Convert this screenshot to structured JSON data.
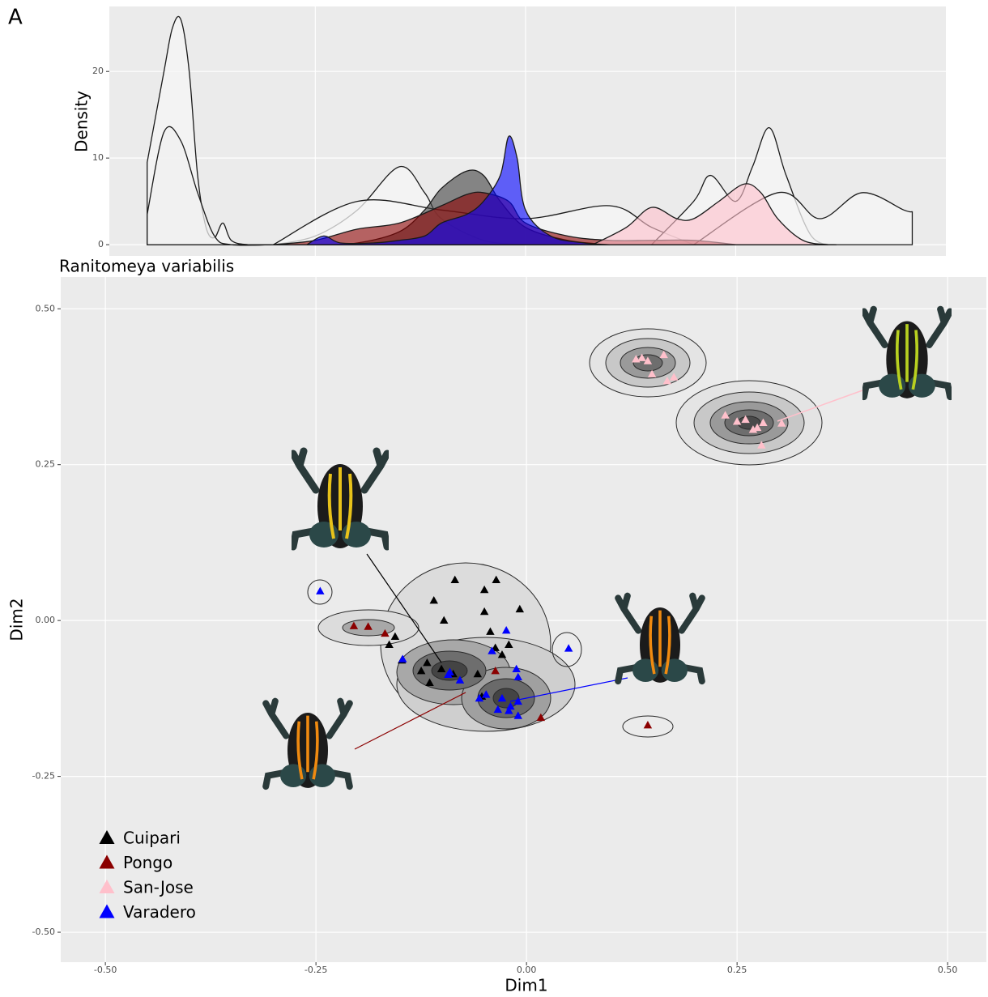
{
  "panel_label": "A",
  "chart_data": [
    {
      "type": "density",
      "ylabel": "Density",
      "xlim": [
        -0.495,
        0.5
      ],
      "ylim": [
        -1.3,
        27.5
      ],
      "xticks": [
        -0.25,
        0,
        0.25
      ],
      "yticks": [
        0,
        10,
        20
      ],
      "grid": true,
      "series": [
        {
          "color": "#f5f5f5",
          "x": [
            -0.45,
            -0.43,
            -0.42,
            -0.41,
            -0.4,
            -0.39,
            -0.38,
            -0.37,
            -0.36,
            -0.35,
            -0.33,
            -0.3
          ],
          "values": [
            9.5,
            20,
            25,
            26,
            20,
            8,
            2,
            0.8,
            2.5,
            0.5,
            0,
            0
          ]
        },
        {
          "color": "#f0f0f0",
          "x": [
            -0.45,
            -0.43,
            -0.41,
            -0.39,
            -0.37,
            -0.35,
            -0.3
          ],
          "values": [
            3.5,
            13,
            12,
            6,
            1,
            0,
            0
          ]
        },
        {
          "color": "#f5f5f5",
          "x": [
            -0.3,
            -0.25,
            -0.2,
            -0.15,
            -0.12,
            -0.1,
            -0.05,
            0
          ],
          "values": [
            0,
            1,
            4,
            9,
            6,
            3,
            0.5,
            0
          ]
        },
        {
          "color": "#f5f5f5",
          "x": [
            -0.3,
            -0.2,
            -0.1,
            0,
            0.1,
            0.15,
            0.2
          ],
          "values": [
            0,
            5,
            4,
            3,
            4.5,
            2,
            0
          ]
        },
        {
          "color": "#f5f5f5",
          "x": [
            0.15,
            0.2,
            0.22,
            0.25,
            0.27,
            0.29,
            0.31,
            0.34,
            0.37
          ],
          "values": [
            0,
            5,
            8,
            5,
            9,
            13.5,
            8,
            1,
            0
          ]
        },
        {
          "color": "#f5f5f5",
          "x": [
            0.2,
            0.3,
            0.35,
            0.4,
            0.45,
            0.46
          ],
          "values": [
            0,
            6,
            3,
            6,
            4,
            3.8
          ]
        },
        {
          "name": "Cuipari",
          "color": "#404040",
          "x": [
            -0.25,
            -0.2,
            -0.15,
            -0.12,
            -0.1,
            -0.07,
            -0.05,
            -0.03,
            0,
            0.05,
            0.1
          ],
          "values": [
            0,
            0.2,
            1.5,
            4,
            6.5,
            8.5,
            8,
            5,
            2,
            0.5,
            0
          ]
        },
        {
          "name": "Pongo",
          "color": "#8b0000",
          "x": [
            -0.3,
            -0.25,
            -0.2,
            -0.15,
            -0.1,
            -0.07,
            -0.05,
            -0.02,
            0,
            0.05,
            0.1,
            0.15,
            0.2,
            0.25
          ],
          "values": [
            0,
            0.5,
            1.8,
            2.5,
            4.5,
            5.8,
            6,
            5,
            2.5,
            1,
            0.5,
            0.5,
            0.5,
            0
          ]
        },
        {
          "name": "San-Jose",
          "color": "#ffc0cb",
          "x": [
            0.08,
            0.12,
            0.15,
            0.18,
            0.2,
            0.23,
            0.26,
            0.28,
            0.3,
            0.33,
            0.36
          ],
          "values": [
            0,
            2,
            4.3,
            3,
            3,
            5,
            7,
            6,
            3,
            0.5,
            0
          ]
        },
        {
          "name": "Varadero",
          "color": "#0000ff",
          "x": [
            -0.26,
            -0.24,
            -0.22,
            -0.18,
            -0.15,
            -0.12,
            -0.1,
            -0.07,
            -0.05,
            -0.03,
            -0.02,
            -0.01,
            0,
            0.03,
            0.07,
            0.1
          ],
          "values": [
            0,
            1,
            0.2,
            0.2,
            0.5,
            1,
            2.5,
            3.5,
            5,
            8,
            12.5,
            10,
            4,
            1,
            0.2,
            0
          ]
        }
      ]
    },
    {
      "type": "scatter",
      "title": "Ranitomeya variabilis",
      "xlabel": "Dim1",
      "ylabel": "Dim2",
      "xlim": [
        -0.553,
        0.546
      ],
      "ylim": [
        -0.548,
        0.551
      ],
      "xticks": [
        {
          "value": -0.5,
          "label": "-0.50"
        },
        {
          "value": -0.25,
          "label": "-0.25"
        },
        {
          "value": 0,
          "label": "0.00"
        },
        {
          "value": 0.25,
          "label": "0.25"
        },
        {
          "value": 0.5,
          "label": "0.50"
        }
      ],
      "yticks": [
        {
          "value": -0.5,
          "label": "-0.50"
        },
        {
          "value": -0.25,
          "label": "-0.25"
        },
        {
          "value": 0,
          "label": "0.00"
        },
        {
          "value": 0.25,
          "label": "0.25"
        },
        {
          "value": 0.5,
          "label": "0.50"
        }
      ],
      "grid": true,
      "legend": "bottom-left",
      "series": [
        {
          "name": "Cuipari",
          "color": "#000000",
          "x": [
            -0.085,
            -0.036,
            -0.11,
            -0.05,
            -0.098,
            -0.008,
            -0.05,
            -0.043,
            -0.021,
            -0.156,
            -0.163,
            -0.148,
            -0.118,
            -0.101,
            -0.087,
            -0.125,
            -0.115,
            -0.058,
            -0.037,
            -0.029,
            -0.053
          ],
          "y": [
            0.065,
            0.065,
            0.032,
            0.049,
            0.0,
            0.018,
            0.014,
            -0.018,
            -0.039,
            -0.026,
            -0.039,
            -0.064,
            -0.068,
            -0.078,
            -0.086,
            -0.081,
            -0.1,
            -0.086,
            -0.044,
            -0.055,
            -0.122
          ]
        },
        {
          "name": "Pongo",
          "color": "#8b0000",
          "x": [
            -0.205,
            -0.188,
            -0.168,
            -0.037,
            0.017,
            0.144
          ],
          "y": [
            -0.009,
            -0.01,
            -0.021,
            -0.081,
            -0.156,
            -0.168
          ]
        },
        {
          "name": "San-Jose",
          "color": "#ffc0cb",
          "x": [
            0.13,
            0.137,
            0.144,
            0.163,
            0.149,
            0.167,
            0.175,
            0.236,
            0.25,
            0.26,
            0.269,
            0.274,
            0.281,
            0.303,
            0.279
          ],
          "y": [
            0.419,
            0.421,
            0.416,
            0.426,
            0.395,
            0.384,
            0.39,
            0.329,
            0.319,
            0.322,
            0.306,
            0.309,
            0.317,
            0.316,
            0.281
          ]
        },
        {
          "name": "Varadero",
          "color": "#0000ff",
          "x": [
            -0.245,
            0.05,
            -0.147,
            -0.024,
            -0.041,
            -0.091,
            -0.079,
            -0.012,
            -0.01,
            -0.048,
            -0.056,
            -0.029,
            -0.019,
            -0.034,
            -0.021,
            -0.01,
            -0.01,
            -0.093
          ],
          "y": [
            0.047,
            -0.045,
            -0.062,
            -0.016,
            -0.049,
            -0.083,
            -0.096,
            -0.078,
            -0.091,
            -0.119,
            -0.125,
            -0.125,
            -0.138,
            -0.143,
            -0.145,
            -0.13,
            -0.153,
            -0.087
          ]
        }
      ]
    }
  ]
}
